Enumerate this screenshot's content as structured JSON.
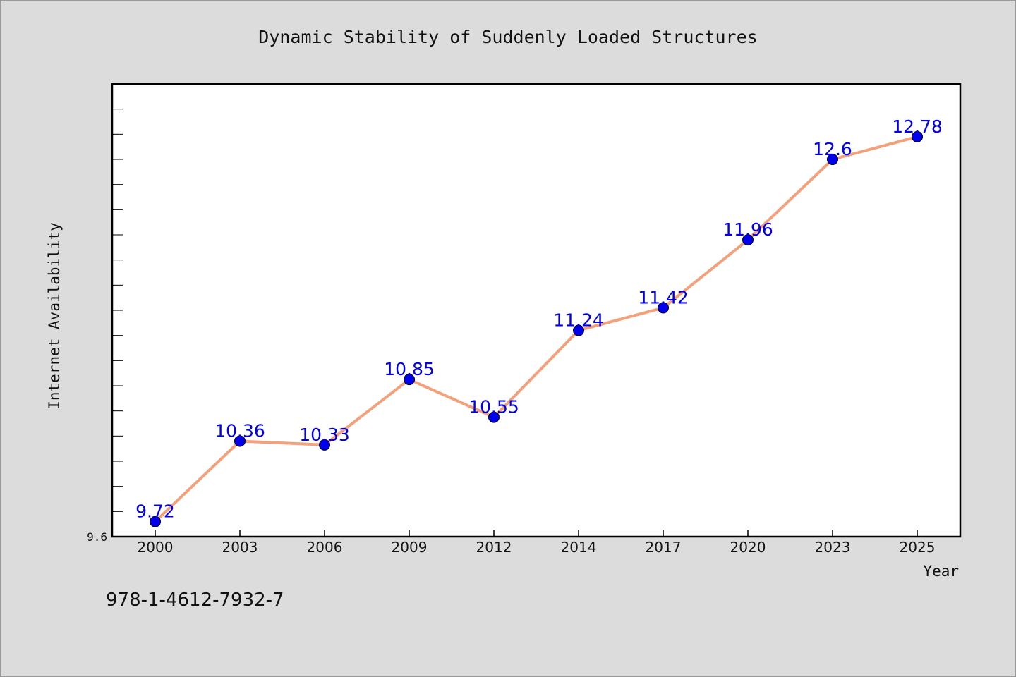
{
  "chart_data": {
    "type": "line",
    "title": "Dynamic Stability of Suddenly Loaded Structures",
    "xlabel": "Year",
    "ylabel": "Internet Availability",
    "categories": [
      "2000",
      "2003",
      "2006",
      "2009",
      "2012",
      "2014",
      "2017",
      "2020",
      "2023",
      "2025"
    ],
    "series": [
      {
        "values": [
          9.72,
          10.36,
          10.33,
          10.85,
          10.55,
          11.24,
          11.42,
          11.96,
          12.6,
          12.78
        ]
      }
    ],
    "data_labels": [
      "9.72",
      "10.36",
      "10.33",
      "10.85",
      "10.55",
      "11.24",
      "11.42",
      "11.96",
      "12.6",
      "12.78"
    ],
    "ylim": [
      9.6,
      13.2
    ],
    "y_tick_labels": [
      "9.6"
    ],
    "grid": false,
    "colors": {
      "line": "#f4a07a",
      "marker": "#0000ee",
      "data_label": "#0000ee",
      "plot_bg": "#ffffff",
      "figure_bg": "#dcdcdc"
    }
  },
  "footer": {
    "isbn": "978-1-4612-7932-7"
  }
}
